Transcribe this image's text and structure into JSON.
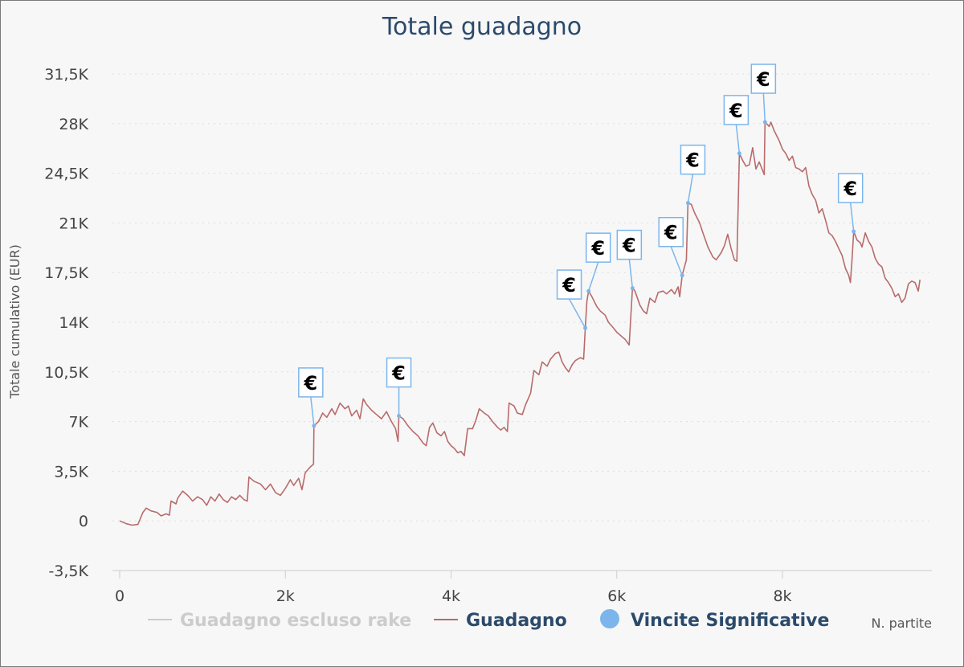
{
  "chart_data": {
    "type": "line",
    "title": "Totale guadagno",
    "ylabel": "Totale cumulativo (EUR)",
    "xlabel": "N. partite",
    "ylim": [
      -3500,
      31500
    ],
    "xlim": [
      0,
      9700
    ],
    "y_ticks": [
      -3500,
      0,
      3500,
      7000,
      10500,
      14000,
      17500,
      21000,
      24500,
      28000,
      31500
    ],
    "y_tick_labels": [
      "-3,5K",
      "0",
      "3,5K",
      "7K",
      "10,5K",
      "14K",
      "17,5K",
      "21K",
      "24,5K",
      "28K",
      "31,5K"
    ],
    "x_ticks": [
      0,
      2000,
      4000,
      6000,
      8000
    ],
    "x_tick_labels": [
      "0",
      "2k",
      "4k",
      "6k",
      "8k"
    ],
    "grid": true,
    "legend_position": "bottom",
    "colors": {
      "excluded_rake": "#cccccc",
      "guadagno": "#b86b6b",
      "vincite": "#7cb5ec",
      "title": "#2b4a6b",
      "grid": "#dddddd"
    },
    "series": [
      {
        "name": "Guadagno escluso rake",
        "hidden": true,
        "points": []
      },
      {
        "name": "Guadagno",
        "points": [
          [
            0,
            0
          ],
          [
            80,
            -200
          ],
          [
            150,
            -300
          ],
          [
            220,
            -250
          ],
          [
            280,
            600
          ],
          [
            320,
            900
          ],
          [
            380,
            700
          ],
          [
            450,
            600
          ],
          [
            500,
            350
          ],
          [
            560,
            500
          ],
          [
            600,
            400
          ],
          [
            620,
            1400
          ],
          [
            680,
            1200
          ],
          [
            700,
            1600
          ],
          [
            760,
            2100
          ],
          [
            820,
            1800
          ],
          [
            880,
            1400
          ],
          [
            940,
            1700
          ],
          [
            1000,
            1500
          ],
          [
            1050,
            1100
          ],
          [
            1100,
            1700
          ],
          [
            1150,
            1400
          ],
          [
            1200,
            1900
          ],
          [
            1250,
            1500
          ],
          [
            1300,
            1300
          ],
          [
            1350,
            1700
          ],
          [
            1400,
            1500
          ],
          [
            1450,
            1800
          ],
          [
            1500,
            1500
          ],
          [
            1540,
            1400
          ],
          [
            1560,
            3100
          ],
          [
            1620,
            2800
          ],
          [
            1700,
            2600
          ],
          [
            1760,
            2200
          ],
          [
            1820,
            2600
          ],
          [
            1880,
            2000
          ],
          [
            1940,
            1800
          ],
          [
            2000,
            2300
          ],
          [
            2060,
            2900
          ],
          [
            2100,
            2500
          ],
          [
            2160,
            3000
          ],
          [
            2200,
            2200
          ],
          [
            2240,
            3400
          ],
          [
            2300,
            3800
          ],
          [
            2340,
            4000
          ],
          [
            2345,
            6700
          ],
          [
            2400,
            7000
          ],
          [
            2450,
            7600
          ],
          [
            2500,
            7300
          ],
          [
            2560,
            7900
          ],
          [
            2600,
            7500
          ],
          [
            2660,
            8300
          ],
          [
            2720,
            7900
          ],
          [
            2760,
            8100
          ],
          [
            2800,
            7400
          ],
          [
            2860,
            7800
          ],
          [
            2900,
            7200
          ],
          [
            2940,
            8600
          ],
          [
            2980,
            8200
          ],
          [
            3040,
            7800
          ],
          [
            3100,
            7500
          ],
          [
            3160,
            7200
          ],
          [
            3220,
            7700
          ],
          [
            3280,
            7000
          ],
          [
            3330,
            6500
          ],
          [
            3360,
            5600
          ],
          [
            3370,
            7400
          ],
          [
            3420,
            7200
          ],
          [
            3480,
            6700
          ],
          [
            3540,
            6300
          ],
          [
            3600,
            6000
          ],
          [
            3660,
            5500
          ],
          [
            3700,
            5300
          ],
          [
            3740,
            6600
          ],
          [
            3780,
            6900
          ],
          [
            3830,
            6200
          ],
          [
            3880,
            6000
          ],
          [
            3920,
            6300
          ],
          [
            3960,
            5600
          ],
          [
            4000,
            5300
          ],
          [
            4040,
            5100
          ],
          [
            4080,
            4800
          ],
          [
            4120,
            4900
          ],
          [
            4160,
            4600
          ],
          [
            4200,
            6500
          ],
          [
            4260,
            6500
          ],
          [
            4300,
            7100
          ],
          [
            4340,
            7900
          ],
          [
            4400,
            7600
          ],
          [
            4450,
            7400
          ],
          [
            4500,
            7000
          ],
          [
            4560,
            6600
          ],
          [
            4600,
            6400
          ],
          [
            4640,
            6600
          ],
          [
            4680,
            6300
          ],
          [
            4700,
            8300
          ],
          [
            4760,
            8100
          ],
          [
            4800,
            7600
          ],
          [
            4860,
            7500
          ],
          [
            4900,
            8200
          ],
          [
            4960,
            9000
          ],
          [
            5000,
            10600
          ],
          [
            5060,
            10300
          ],
          [
            5100,
            11200
          ],
          [
            5160,
            10900
          ],
          [
            5200,
            11400
          ],
          [
            5260,
            11800
          ],
          [
            5300,
            11900
          ],
          [
            5340,
            11200
          ],
          [
            5380,
            10800
          ],
          [
            5420,
            10500
          ],
          [
            5460,
            11000
          ],
          [
            5500,
            11300
          ],
          [
            5560,
            11500
          ],
          [
            5600,
            11400
          ],
          [
            5620,
            13600
          ],
          [
            5640,
            15500
          ],
          [
            5660,
            16200
          ],
          [
            5700,
            15800
          ],
          [
            5760,
            15100
          ],
          [
            5800,
            14800
          ],
          [
            5860,
            14500
          ],
          [
            5900,
            14000
          ],
          [
            5960,
            13600
          ],
          [
            6000,
            13300
          ],
          [
            6060,
            13000
          ],
          [
            6100,
            12800
          ],
          [
            6150,
            12400
          ],
          [
            6190,
            16400
          ],
          [
            6220,
            16200
          ],
          [
            6280,
            15200
          ],
          [
            6320,
            14800
          ],
          [
            6360,
            14600
          ],
          [
            6400,
            15700
          ],
          [
            6460,
            15400
          ],
          [
            6500,
            16100
          ],
          [
            6560,
            16200
          ],
          [
            6600,
            16000
          ],
          [
            6660,
            16300
          ],
          [
            6700,
            16000
          ],
          [
            6740,
            16500
          ],
          [
            6760,
            15800
          ],
          [
            6790,
            17300
          ],
          [
            6840,
            18400
          ],
          [
            6860,
            22400
          ],
          [
            6900,
            22300
          ],
          [
            6940,
            21700
          ],
          [
            7000,
            21000
          ],
          [
            7040,
            20300
          ],
          [
            7100,
            19300
          ],
          [
            7160,
            18600
          ],
          [
            7200,
            18400
          ],
          [
            7260,
            18900
          ],
          [
            7300,
            19400
          ],
          [
            7340,
            20200
          ],
          [
            7380,
            19200
          ],
          [
            7420,
            18400
          ],
          [
            7450,
            18300
          ],
          [
            7480,
            25900
          ],
          [
            7520,
            25400
          ],
          [
            7560,
            25000
          ],
          [
            7600,
            25100
          ],
          [
            7640,
            26300
          ],
          [
            7680,
            24800
          ],
          [
            7720,
            25300
          ],
          [
            7760,
            24700
          ],
          [
            7780,
            24400
          ],
          [
            7790,
            28100
          ],
          [
            7840,
            27800
          ],
          [
            7860,
            28100
          ],
          [
            7900,
            27500
          ],
          [
            7960,
            26800
          ],
          [
            8000,
            26200
          ],
          [
            8040,
            25900
          ],
          [
            8080,
            25400
          ],
          [
            8120,
            25700
          ],
          [
            8160,
            24900
          ],
          [
            8200,
            24800
          ],
          [
            8240,
            24600
          ],
          [
            8280,
            24900
          ],
          [
            8320,
            23600
          ],
          [
            8360,
            23000
          ],
          [
            8400,
            22600
          ],
          [
            8440,
            21700
          ],
          [
            8480,
            22000
          ],
          [
            8520,
            21200
          ],
          [
            8560,
            20300
          ],
          [
            8600,
            20100
          ],
          [
            8640,
            19700
          ],
          [
            8680,
            19200
          ],
          [
            8720,
            18700
          ],
          [
            8760,
            17800
          ],
          [
            8800,
            17300
          ],
          [
            8820,
            16800
          ],
          [
            8840,
            18400
          ],
          [
            8860,
            20400
          ],
          [
            8900,
            19800
          ],
          [
            8940,
            19600
          ],
          [
            8960,
            19300
          ],
          [
            9000,
            20300
          ],
          [
            9040,
            19700
          ],
          [
            9080,
            19300
          ],
          [
            9120,
            18500
          ],
          [
            9160,
            18100
          ],
          [
            9200,
            17900
          ],
          [
            9240,
            17100
          ],
          [
            9280,
            16800
          ],
          [
            9320,
            16400
          ],
          [
            9360,
            15800
          ],
          [
            9400,
            16000
          ],
          [
            9440,
            15400
          ],
          [
            9480,
            15700
          ],
          [
            9520,
            16700
          ],
          [
            9560,
            16900
          ],
          [
            9600,
            16800
          ],
          [
            9640,
            16200
          ],
          [
            9660,
            17000
          ]
        ]
      },
      {
        "name": "Vincite Significative",
        "marker": "€",
        "points": [
          [
            2345,
            6700
          ],
          [
            3370,
            7400
          ],
          [
            5620,
            13600
          ],
          [
            5660,
            16200
          ],
          [
            6190,
            16400
          ],
          [
            6790,
            17300
          ],
          [
            6860,
            22400
          ],
          [
            7480,
            25900
          ],
          [
            7790,
            28100
          ],
          [
            8860,
            20400
          ]
        ]
      }
    ]
  }
}
